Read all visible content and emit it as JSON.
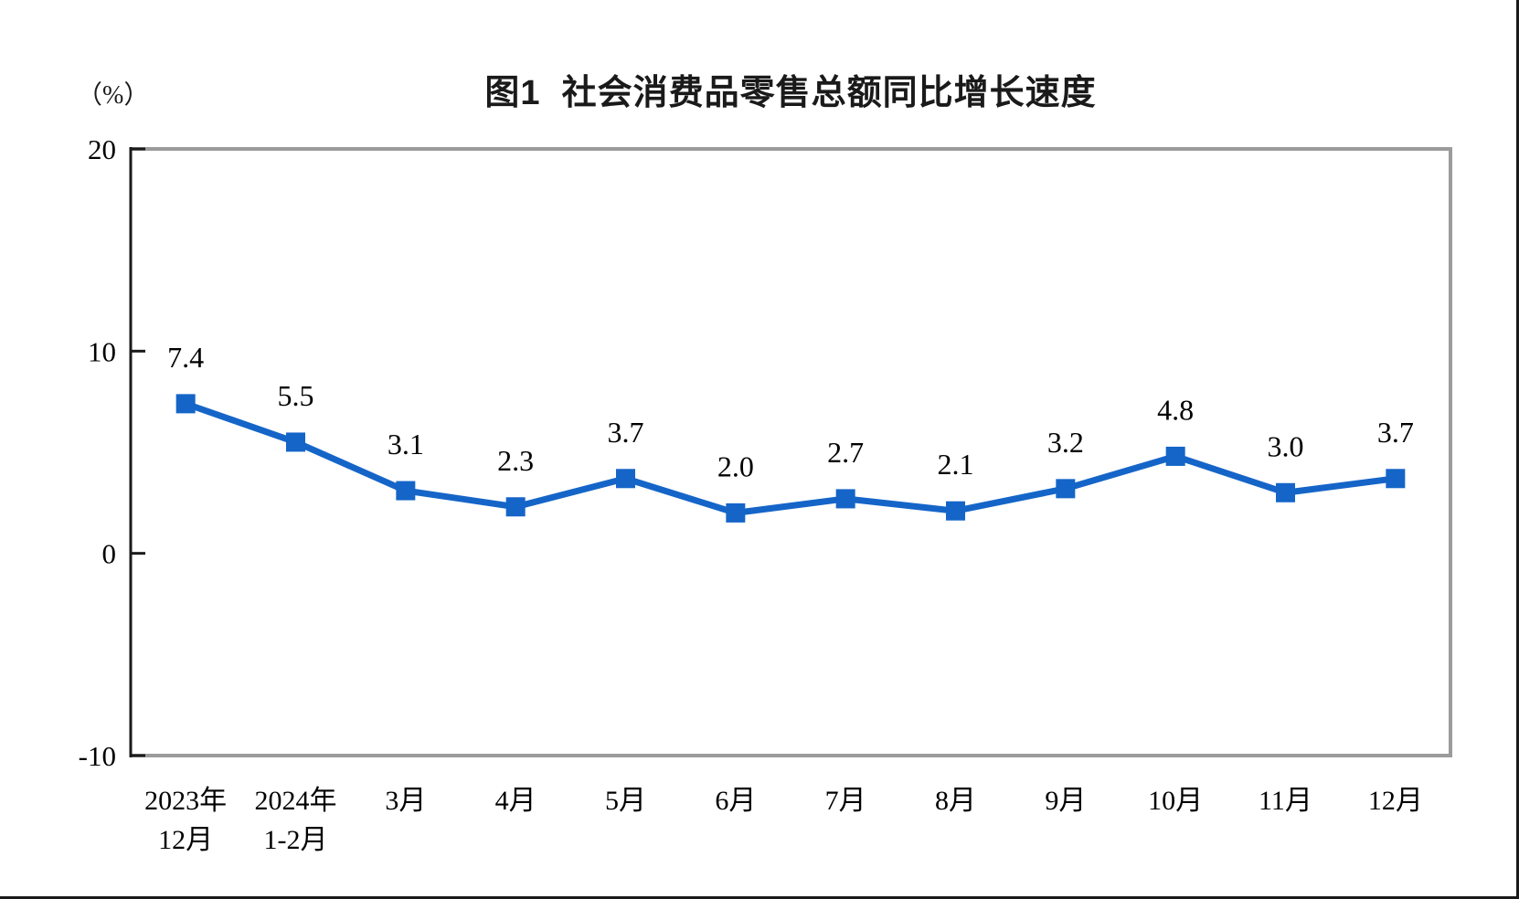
{
  "chart_data": {
    "type": "line",
    "title": "图1  社会消费品零售总额同比增长速度",
    "ylabel": "（%）",
    "xlabel": "",
    "categories": [
      [
        "2023年",
        "12月"
      ],
      [
        "2024年",
        "1-2月"
      ],
      [
        "3月"
      ],
      [
        "4月"
      ],
      [
        "5月"
      ],
      [
        "6月"
      ],
      [
        "7月"
      ],
      [
        "8月"
      ],
      [
        "9月"
      ],
      [
        "10月"
      ],
      [
        "11月"
      ],
      [
        "12月"
      ]
    ],
    "values": [
      7.4,
      5.5,
      3.1,
      2.3,
      3.7,
      2.0,
      2.7,
      2.1,
      3.2,
      4.8,
      3.0,
      3.7
    ],
    "data_labels": [
      "7.4",
      "5.5",
      "3.1",
      "2.3",
      "3.7",
      "2.0",
      "2.7",
      "2.1",
      "3.2",
      "4.8",
      "3.0",
      "3.7"
    ],
    "yticks": [
      20,
      10,
      0,
      -10
    ],
    "ylim": [
      -10,
      20
    ],
    "grid": false,
    "legend": false,
    "line_color": "#1565C8",
    "marker": "square",
    "axis_color": "#1a1a1a",
    "border_color": "#9b9b9b",
    "text_color": "#000000"
  }
}
